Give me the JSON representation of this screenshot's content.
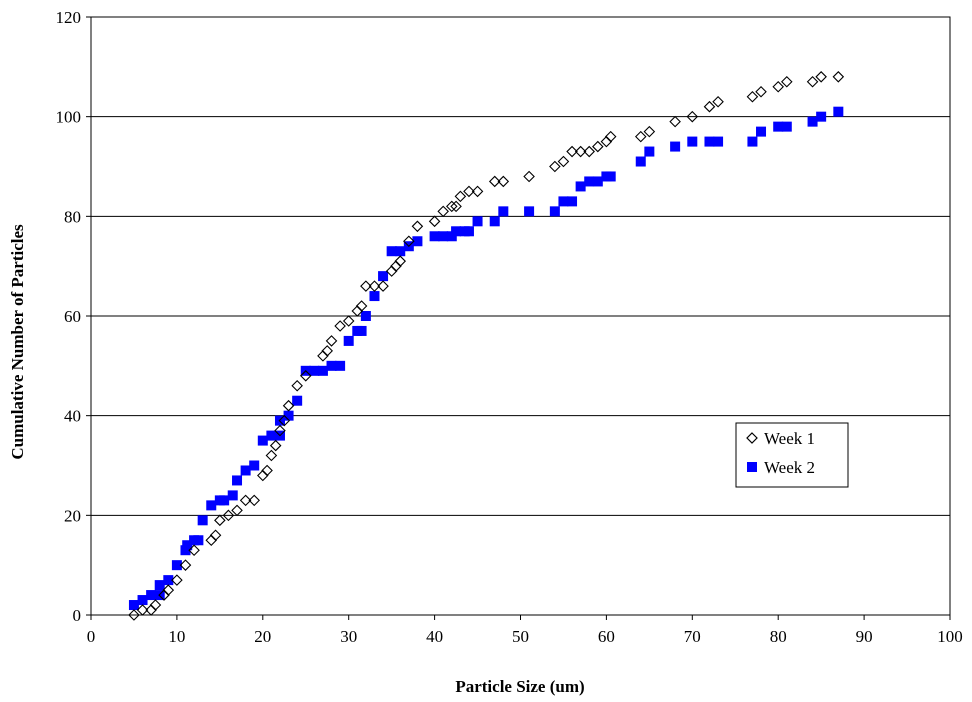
{
  "chart_data": {
    "type": "scatter",
    "xlabel": "Particle Size (um)",
    "ylabel": "Cumulative Number of Particles",
    "xlim": [
      0,
      100
    ],
    "ylim": [
      0,
      120
    ],
    "xticks": [
      0,
      10,
      20,
      30,
      40,
      50,
      60,
      70,
      80,
      90,
      100
    ],
    "yticks": [
      0,
      20,
      40,
      60,
      80,
      100,
      120
    ],
    "grid": "horizontal",
    "legend_position": "right",
    "series": [
      {
        "name": "Week 1",
        "marker": "diamond-open",
        "color": "#000000",
        "points": [
          [
            5,
            0
          ],
          [
            6,
            1
          ],
          [
            7,
            1
          ],
          [
            7.5,
            2
          ],
          [
            8.5,
            4
          ],
          [
            9,
            5
          ],
          [
            10,
            7
          ],
          [
            11,
            10
          ],
          [
            12,
            13
          ],
          [
            14,
            15
          ],
          [
            14.5,
            16
          ],
          [
            15,
            19
          ],
          [
            16,
            20
          ],
          [
            17,
            21
          ],
          [
            18,
            23
          ],
          [
            19,
            23
          ],
          [
            20,
            28
          ],
          [
            20.5,
            29
          ],
          [
            21,
            32
          ],
          [
            21.5,
            34
          ],
          [
            22,
            37
          ],
          [
            22.5,
            39
          ],
          [
            23,
            42
          ],
          [
            24,
            46
          ],
          [
            25,
            48
          ],
          [
            27,
            52
          ],
          [
            27.5,
            53
          ],
          [
            28,
            55
          ],
          [
            29,
            58
          ],
          [
            30,
            59
          ],
          [
            31,
            61
          ],
          [
            31.5,
            62
          ],
          [
            32,
            66
          ],
          [
            33,
            66
          ],
          [
            34,
            66
          ],
          [
            35,
            69
          ],
          [
            35.5,
            70
          ],
          [
            36,
            71
          ],
          [
            37,
            75
          ],
          [
            38,
            78
          ],
          [
            40,
            79
          ],
          [
            41,
            81
          ],
          [
            42,
            82
          ],
          [
            42.5,
            82
          ],
          [
            43,
            84
          ],
          [
            44,
            85
          ],
          [
            45,
            85
          ],
          [
            47,
            87
          ],
          [
            48,
            87
          ],
          [
            51,
            88
          ],
          [
            54,
            90
          ],
          [
            55,
            91
          ],
          [
            56,
            93
          ],
          [
            57,
            93
          ],
          [
            58,
            93
          ],
          [
            59,
            94
          ],
          [
            60,
            95
          ],
          [
            60.5,
            96
          ],
          [
            64,
            96
          ],
          [
            65,
            97
          ],
          [
            68,
            99
          ],
          [
            70,
            100
          ],
          [
            72,
            102
          ],
          [
            73,
            103
          ],
          [
            77,
            104
          ],
          [
            78,
            105
          ],
          [
            80,
            106
          ],
          [
            81,
            107
          ],
          [
            84,
            107
          ],
          [
            85,
            108
          ],
          [
            87,
            108
          ]
        ]
      },
      {
        "name": "Week 2",
        "marker": "square-filled",
        "color": "#0000ff",
        "points": [
          [
            5,
            2
          ],
          [
            6,
            3
          ],
          [
            7,
            4
          ],
          [
            8,
            4
          ],
          [
            8,
            6
          ],
          [
            9,
            7
          ],
          [
            10,
            10
          ],
          [
            11,
            13
          ],
          [
            11.2,
            14
          ],
          [
            12,
            15
          ],
          [
            12.5,
            15
          ],
          [
            13,
            19
          ],
          [
            14,
            22
          ],
          [
            15,
            23
          ],
          [
            15.5,
            23
          ],
          [
            16.5,
            24
          ],
          [
            17,
            27
          ],
          [
            18,
            29
          ],
          [
            19,
            30
          ],
          [
            20,
            35
          ],
          [
            21,
            36
          ],
          [
            22,
            36
          ],
          [
            22,
            39
          ],
          [
            23,
            40
          ],
          [
            24,
            43
          ],
          [
            25,
            49
          ],
          [
            26,
            49
          ],
          [
            27,
            49
          ],
          [
            28,
            50
          ],
          [
            29,
            50
          ],
          [
            30,
            55
          ],
          [
            31,
            57
          ],
          [
            31.5,
            57
          ],
          [
            32,
            60
          ],
          [
            33,
            64
          ],
          [
            34,
            68
          ],
          [
            35,
            73
          ],
          [
            36,
            73
          ],
          [
            37,
            74
          ],
          [
            38,
            75
          ],
          [
            40,
            76
          ],
          [
            41,
            76
          ],
          [
            42,
            76
          ],
          [
            42.5,
            77
          ],
          [
            43.5,
            77
          ],
          [
            44,
            77
          ],
          [
            45,
            79
          ],
          [
            47,
            79
          ],
          [
            48,
            81
          ],
          [
            51,
            81
          ],
          [
            54,
            81
          ],
          [
            55,
            83
          ],
          [
            56,
            83
          ],
          [
            57,
            86
          ],
          [
            58,
            87
          ],
          [
            59,
            87
          ],
          [
            60,
            88
          ],
          [
            60.5,
            88
          ],
          [
            64,
            91
          ],
          [
            65,
            93
          ],
          [
            68,
            94
          ],
          [
            70,
            95
          ],
          [
            72,
            95
          ],
          [
            73,
            95
          ],
          [
            77,
            95
          ],
          [
            78,
            97
          ],
          [
            80,
            98
          ],
          [
            81,
            98
          ],
          [
            84,
            99
          ],
          [
            85,
            100
          ],
          [
            87,
            101
          ]
        ]
      }
    ]
  }
}
